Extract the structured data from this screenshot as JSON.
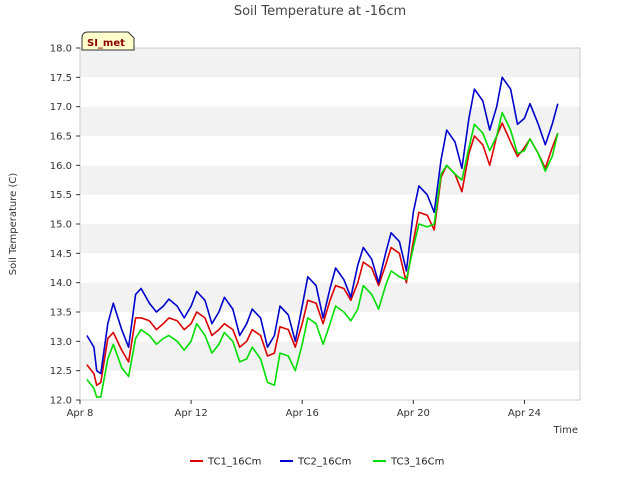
{
  "chart_data": {
    "type": "line",
    "title": "Soil Temperature at -16cm",
    "xlabel": "Time",
    "ylabel": "Soil Temperature (C)",
    "site_label": "SI_met",
    "xlim": [
      0,
      18
    ],
    "ylim": [
      12.0,
      18.0
    ],
    "x_ticks": [
      {
        "label": "Apr 8",
        "x": 0
      },
      {
        "label": "Apr 12",
        "x": 4
      },
      {
        "label": "Apr 16",
        "x": 8
      },
      {
        "label": "Apr 20",
        "x": 12
      },
      {
        "label": "Apr 24",
        "x": 16
      }
    ],
    "y_ticks": [
      {
        "label": "12.0",
        "y": 12.0
      },
      {
        "label": "12.5",
        "y": 12.5
      },
      {
        "label": "13.0",
        "y": 13.0
      },
      {
        "label": "13.5",
        "y": 13.5
      },
      {
        "label": "14.0",
        "y": 14.0
      },
      {
        "label": "14.5",
        "y": 14.5
      },
      {
        "label": "15.0",
        "y": 15.0
      },
      {
        "label": "15.5",
        "y": 15.5
      },
      {
        "label": "16.0",
        "y": 16.0
      },
      {
        "label": "16.5",
        "y": 16.5
      },
      {
        "label": "17.0",
        "y": 17.0
      },
      {
        "label": "17.5",
        "y": 17.5
      },
      {
        "label": "18.0",
        "y": 18.0
      }
    ],
    "x": [
      0.25,
      0.5,
      0.6,
      0.75,
      1.0,
      1.2,
      1.5,
      1.75,
      2.0,
      2.2,
      2.5,
      2.75,
      3.0,
      3.2,
      3.5,
      3.75,
      4.0,
      4.2,
      4.5,
      4.75,
      5.0,
      5.2,
      5.5,
      5.75,
      6.0,
      6.2,
      6.5,
      6.75,
      7.0,
      7.2,
      7.5,
      7.75,
      8.0,
      8.2,
      8.5,
      8.75,
      9.0,
      9.2,
      9.5,
      9.75,
      10.0,
      10.2,
      10.5,
      10.75,
      11.0,
      11.2,
      11.5,
      11.75,
      12.0,
      12.2,
      12.5,
      12.75,
      13.0,
      13.2,
      13.5,
      13.75,
      14.0,
      14.2,
      14.5,
      14.75,
      15.0,
      15.2,
      15.5,
      15.75,
      16.0,
      16.2,
      16.5,
      16.75,
      17.0,
      17.2
    ],
    "series": [
      {
        "name": "TC1_16Cm",
        "color": "#dd0000",
        "values": [
          12.6,
          12.45,
          12.25,
          12.3,
          13.05,
          13.15,
          12.85,
          12.65,
          13.4,
          13.4,
          13.35,
          13.2,
          13.3,
          13.4,
          13.35,
          13.2,
          13.3,
          13.5,
          13.4,
          13.1,
          13.2,
          13.3,
          13.2,
          12.9,
          13.0,
          13.2,
          13.1,
          12.75,
          12.8,
          13.25,
          13.2,
          12.9,
          13.3,
          13.7,
          13.65,
          13.3,
          13.7,
          13.95,
          13.9,
          13.7,
          14.0,
          14.35,
          14.25,
          13.95,
          14.3,
          14.6,
          14.5,
          14.0,
          14.7,
          15.2,
          15.15,
          14.9,
          15.8,
          16.0,
          15.85,
          15.55,
          16.2,
          16.5,
          16.35,
          16.0,
          16.5,
          16.72,
          16.4,
          16.15,
          16.3,
          16.45,
          16.2,
          15.95,
          16.3,
          16.55
        ]
      },
      {
        "name": "TC2_16Cm",
        "color": "#0000cc",
        "values": [
          13.1,
          12.9,
          12.5,
          12.45,
          13.3,
          13.65,
          13.2,
          12.9,
          13.8,
          13.9,
          13.65,
          13.5,
          13.6,
          13.72,
          13.6,
          13.4,
          13.6,
          13.85,
          13.7,
          13.3,
          13.5,
          13.75,
          13.55,
          13.1,
          13.3,
          13.55,
          13.4,
          12.9,
          13.1,
          13.6,
          13.45,
          13.0,
          13.6,
          14.1,
          13.95,
          13.4,
          13.9,
          14.25,
          14.05,
          13.75,
          14.3,
          14.6,
          14.4,
          14.0,
          14.5,
          14.85,
          14.7,
          14.2,
          15.2,
          15.65,
          15.5,
          15.2,
          16.1,
          16.6,
          16.4,
          15.95,
          16.8,
          17.3,
          17.1,
          16.6,
          17.0,
          17.5,
          17.3,
          16.7,
          16.8,
          17.05,
          16.7,
          16.35,
          16.7,
          17.05
        ]
      },
      {
        "name": "TC3_16Cm",
        "color": "#00dd00",
        "values": [
          12.35,
          12.2,
          12.05,
          12.05,
          12.7,
          12.95,
          12.55,
          12.4,
          13.05,
          13.2,
          13.1,
          12.95,
          13.05,
          13.1,
          13.0,
          12.85,
          13.0,
          13.3,
          13.1,
          12.8,
          12.95,
          13.15,
          13.0,
          12.65,
          12.7,
          12.9,
          12.7,
          12.3,
          12.25,
          12.8,
          12.75,
          12.5,
          12.95,
          13.4,
          13.3,
          12.95,
          13.3,
          13.6,
          13.5,
          13.35,
          13.55,
          13.95,
          13.8,
          13.55,
          13.95,
          14.2,
          14.1,
          14.05,
          14.6,
          15.0,
          14.95,
          15.0,
          15.85,
          16.0,
          15.85,
          15.75,
          16.3,
          16.7,
          16.55,
          16.25,
          16.5,
          16.9,
          16.6,
          16.2,
          16.25,
          16.45,
          16.2,
          15.9,
          16.15,
          16.55
        ]
      }
    ]
  }
}
